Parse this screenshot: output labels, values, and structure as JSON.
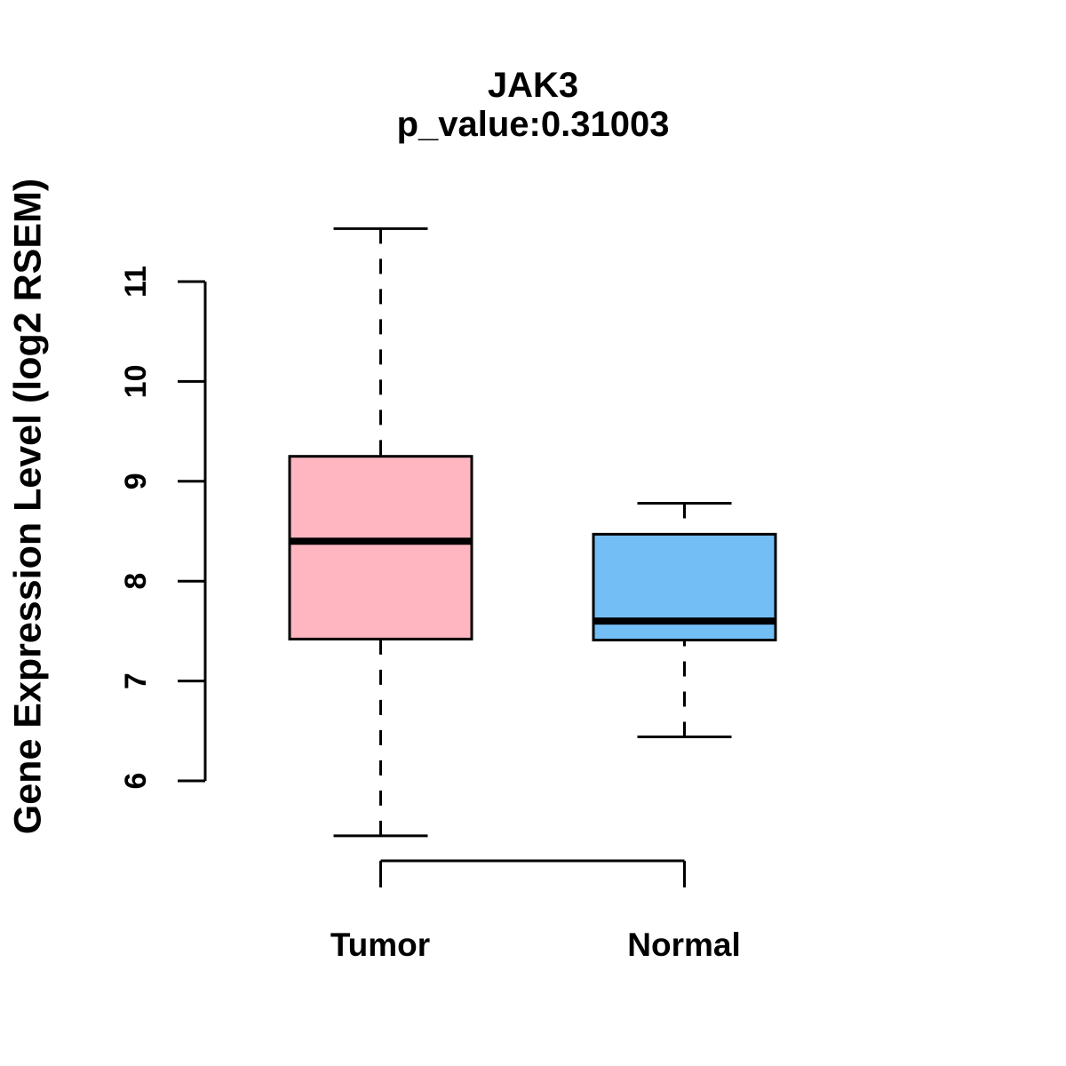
{
  "chart_data": {
    "type": "boxplot",
    "title": "JAK3",
    "subtitle": "p_value:0.31003",
    "ylabel": "Gene Expression Level (log2 RSEM)",
    "xlabel": "",
    "yticks": [
      6,
      7,
      8,
      9,
      10,
      11
    ],
    "ylim": [
      5.2,
      11.8
    ],
    "grid": false,
    "legend": "none",
    "groups": [
      {
        "label": "Tumor",
        "color": "#FFB6C1",
        "whisker_low": 5.45,
        "q1": 7.42,
        "median": 8.4,
        "q3": 9.25,
        "whisker_high": 11.53
      },
      {
        "label": "Normal",
        "color": "#74BEF6",
        "whisker_low": 6.44,
        "q1": 7.41,
        "median": 7.6,
        "q3": 8.47,
        "whisker_high": 8.78
      }
    ],
    "colors": {
      "box_border": "#000000",
      "axis": "#000000",
      "text": "#000000",
      "background": "#FFFFFF"
    }
  }
}
